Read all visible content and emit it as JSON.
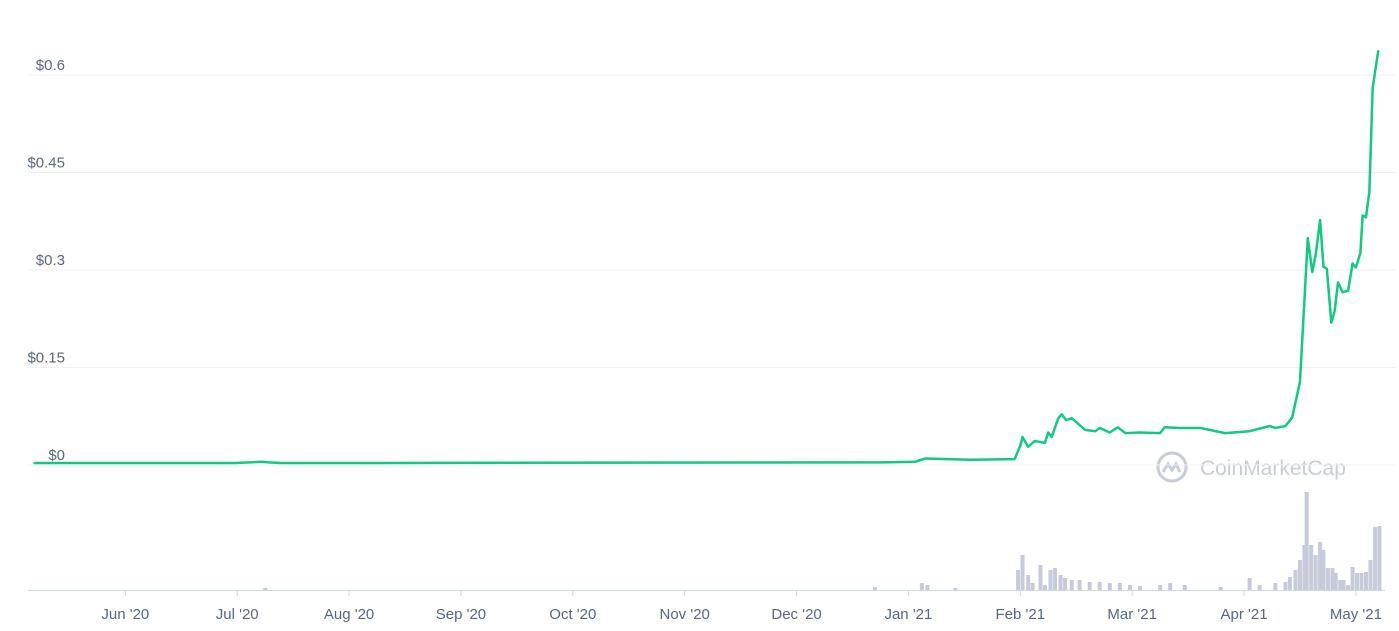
{
  "chart_data": {
    "type": "line",
    "watermark": "CoinMarketCap",
    "xlim": [
      5.13,
      17.26
    ],
    "xticks": [
      {
        "value": 6,
        "label": "Jun '20"
      },
      {
        "value": 7,
        "label": "Jul '20"
      },
      {
        "value": 8,
        "label": "Aug '20"
      },
      {
        "value": 9,
        "label": "Sep '20"
      },
      {
        "value": 10,
        "label": "Oct '20"
      },
      {
        "value": 11,
        "label": "Nov '20"
      },
      {
        "value": 12,
        "label": "Dec '20"
      },
      {
        "value": 13,
        "label": "Jan '21"
      },
      {
        "value": 14,
        "label": "Feb '21"
      },
      {
        "value": 15,
        "label": "Mar '21"
      },
      {
        "value": 16,
        "label": "Apr '21"
      },
      {
        "value": 17,
        "label": "May '21"
      }
    ],
    "ylim": [
      0,
      0.69
    ],
    "yticks": [
      {
        "value": 0,
        "label": "$0"
      },
      {
        "value": 0.15,
        "label": "$0.15"
      },
      {
        "value": 0.3,
        "label": "$0.3"
      },
      {
        "value": 0.45,
        "label": "$0.45"
      },
      {
        "value": 0.6,
        "label": "$0.6"
      }
    ],
    "grid": true,
    "series": [
      {
        "color": "#16c784",
        "x": [
          5.18,
          6.99,
          7.22,
          7.28,
          7.39,
          12.73,
          13.06,
          13.15,
          13.55,
          13.95,
          14.0,
          14.02,
          14.07,
          14.13,
          14.22,
          14.25,
          14.28,
          14.34,
          14.37,
          14.41,
          14.46,
          14.52,
          14.58,
          14.67,
          14.71,
          14.8,
          14.87,
          14.94,
          15.07,
          15.25,
          15.29,
          15.43,
          15.61,
          15.83,
          16.05,
          16.23,
          16.28,
          16.37,
          16.43,
          16.5,
          16.57,
          16.61,
          16.64,
          16.68,
          16.71,
          16.74,
          16.78,
          16.81,
          16.84,
          16.88,
          16.93,
          16.97,
          17.0,
          17.04,
          17.06,
          17.09,
          17.12,
          17.15,
          17.2
        ],
        "values": [
          0.003,
          0.003,
          0.005,
          0.004,
          0.003,
          0.004,
          0.005,
          0.01,
          0.008,
          0.009,
          0.03,
          0.043,
          0.028,
          0.037,
          0.034,
          0.05,
          0.043,
          0.072,
          0.078,
          0.069,
          0.072,
          0.063,
          0.054,
          0.052,
          0.057,
          0.05,
          0.058,
          0.049,
          0.05,
          0.049,
          0.058,
          0.057,
          0.057,
          0.049,
          0.052,
          0.06,
          0.057,
          0.06,
          0.073,
          0.128,
          0.349,
          0.297,
          0.323,
          0.377,
          0.305,
          0.302,
          0.219,
          0.237,
          0.281,
          0.266,
          0.268,
          0.31,
          0.304,
          0.326,
          0.384,
          0.381,
          0.42,
          0.58,
          0.638
        ]
      }
    ],
    "volume": {
      "color": "#c7cbd9",
      "ylim": [
        0,
        100
      ],
      "x": [
        7.25,
        12.7,
        13.12,
        13.17,
        13.42,
        13.98,
        14.02,
        14.07,
        14.11,
        14.18,
        14.22,
        14.27,
        14.31,
        14.36,
        14.4,
        14.46,
        14.53,
        14.62,
        14.71,
        14.8,
        14.89,
        14.98,
        15.07,
        15.25,
        15.34,
        15.47,
        15.79,
        16.05,
        16.14,
        16.28,
        16.37,
        16.41,
        16.46,
        16.5,
        16.54,
        16.56,
        16.6,
        16.64,
        16.68,
        16.71,
        16.75,
        16.79,
        16.82,
        16.86,
        16.89,
        16.93,
        16.97,
        17.01,
        17.05,
        17.09,
        17.13,
        17.17,
        17.21
      ],
      "values": [
        2,
        3,
        7,
        5,
        2,
        20,
        35,
        15,
        7,
        25,
        5,
        20,
        22,
        15,
        12,
        10,
        10,
        8,
        8,
        7,
        7,
        5,
        4,
        5,
        7,
        5,
        3,
        12,
        5,
        7,
        8,
        13,
        20,
        30,
        45,
        98,
        45,
        35,
        48,
        40,
        22,
        22,
        17,
        10,
        10,
        5,
        23,
        17,
        17,
        18,
        30,
        63,
        64
      ]
    }
  }
}
